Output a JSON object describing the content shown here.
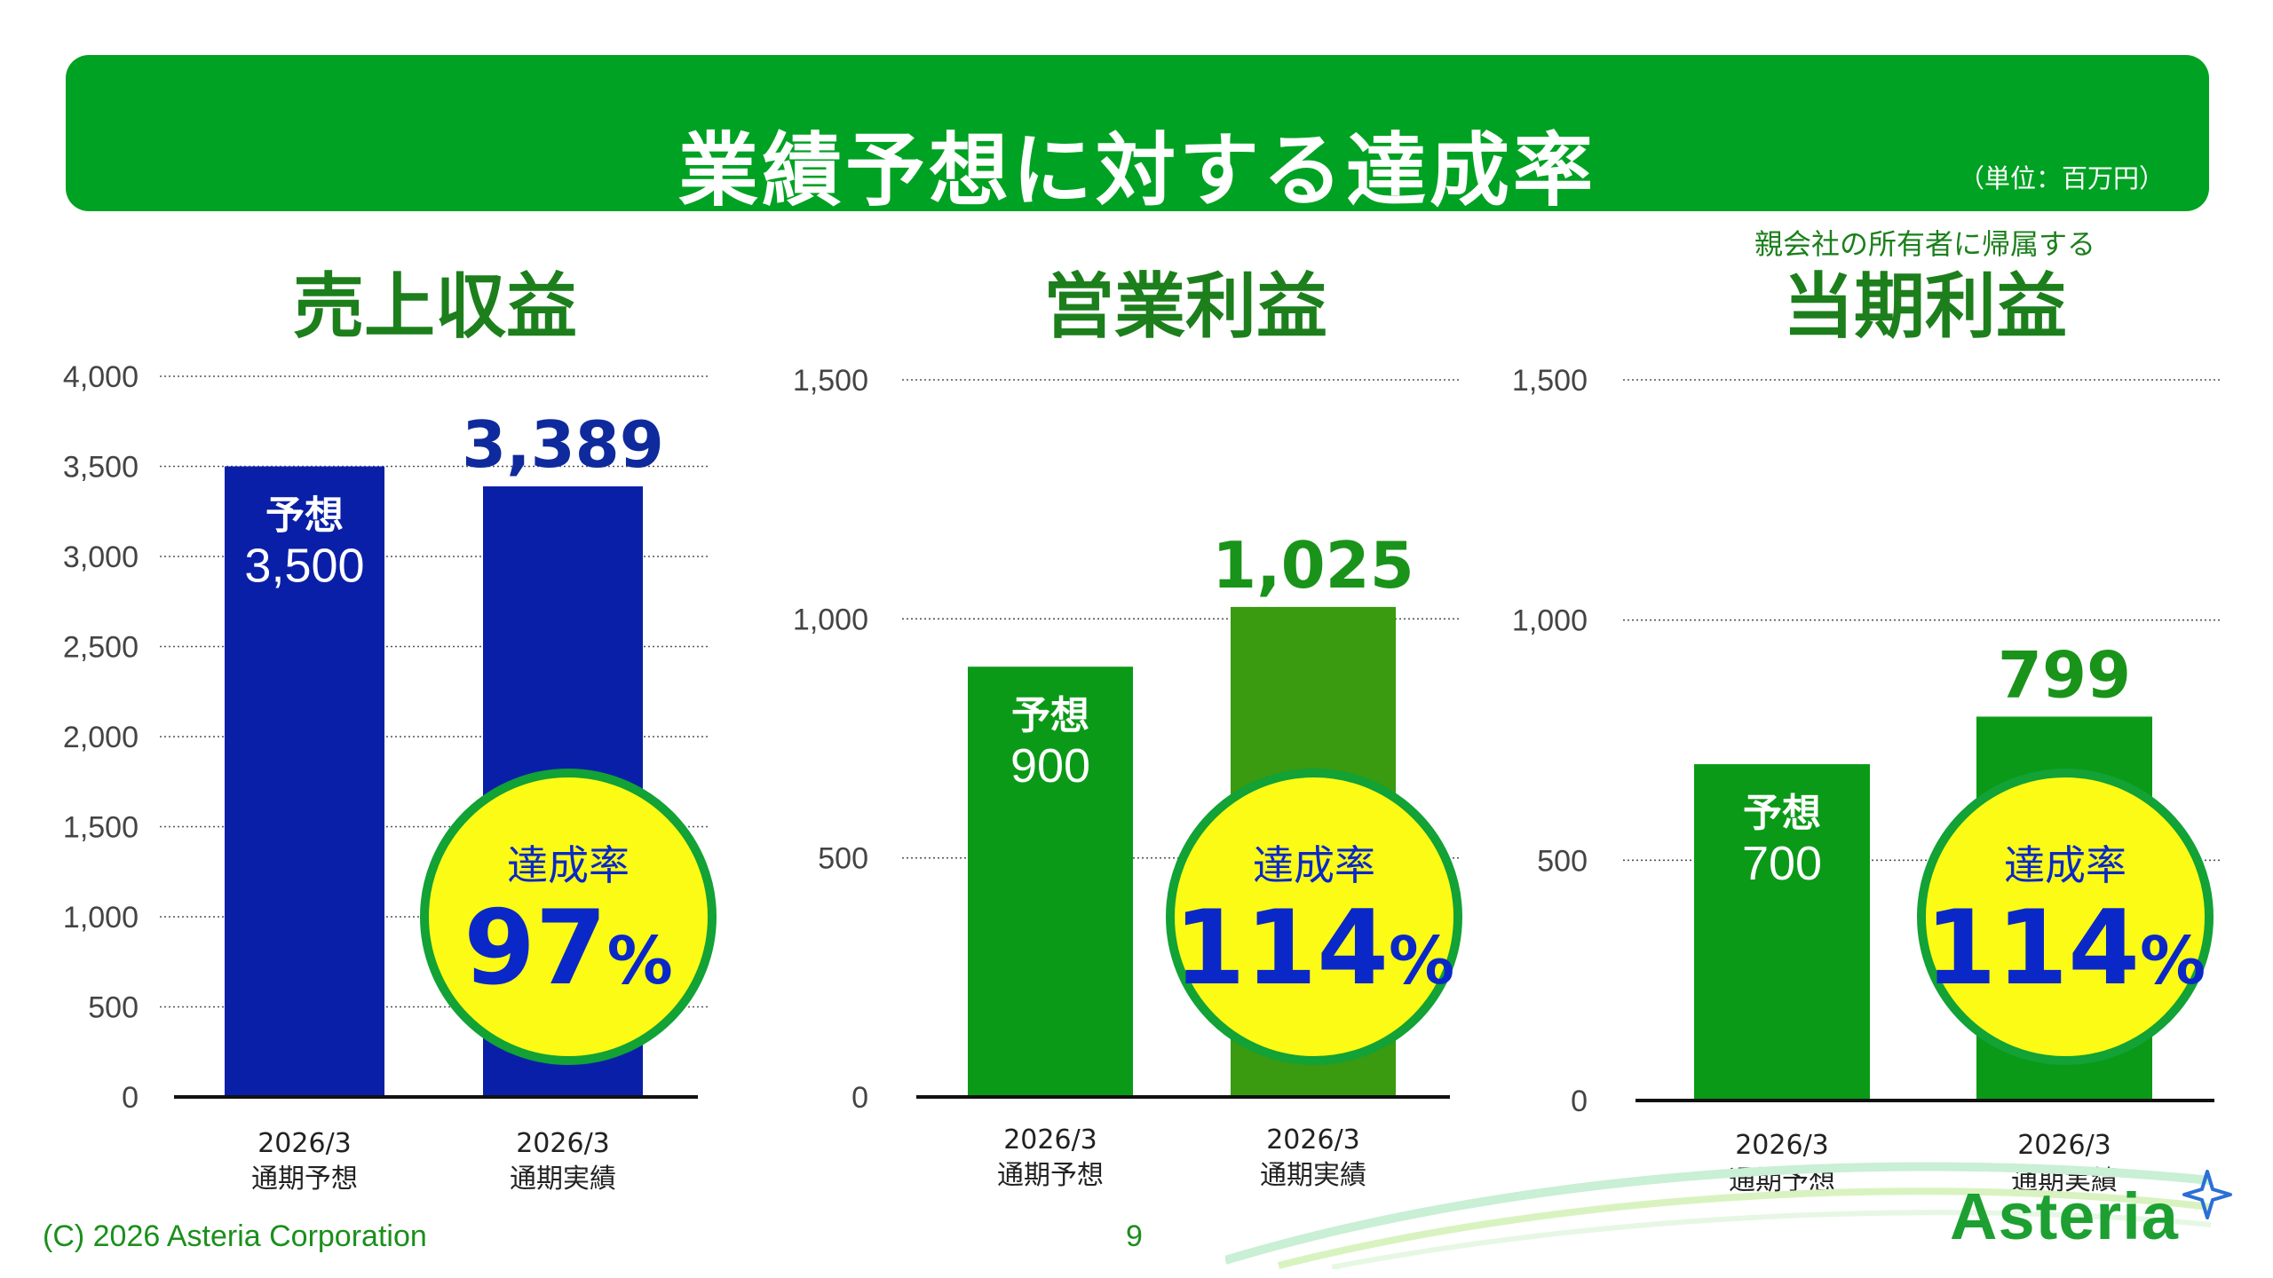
{
  "header": {
    "title": "業績予想に対する達成率",
    "unit": "（単位：百万円）"
  },
  "colors": {
    "banner": "#00a223",
    "title_green": "#1c7f1c",
    "navy_bar": "#0a1fa8",
    "green_bar_forecast": "#0a9a17",
    "green_bar_actual": "#3a9a10",
    "badge_fill": "#fbfb16",
    "badge_ring": "#12a235",
    "badge_text": "#0a28c8"
  },
  "chart_data": [
    {
      "type": "bar",
      "title": "売上収益",
      "note": "",
      "categories": [
        "2026/3\n通期予想",
        "2026/3\n通期実績"
      ],
      "category_lines": [
        [
          "2026/3",
          "通期予想"
        ],
        [
          "2026/3",
          "通期実績"
        ]
      ],
      "values": [
        3500,
        3389
      ],
      "ylim": [
        0,
        4000
      ],
      "yticks": [
        "0",
        "500",
        "1,000",
        "1,500",
        "2,000",
        "2,500",
        "3,000",
        "3,500",
        "4,000"
      ],
      "ytick_values": [
        0,
        500,
        1000,
        1500,
        2000,
        2500,
        3000,
        3500,
        4000
      ],
      "grid": true,
      "forecast_label": "予想",
      "forecast_value_label": "3,500",
      "actual_value_label": "3,389",
      "achievement_label": "達成率",
      "achievement_number": "97",
      "achievement_unit": "%",
      "bar_colors": [
        "#0a1fa8",
        "#0a1fa8"
      ],
      "actual_label_color": "#0f2a9c"
    },
    {
      "type": "bar",
      "title": "営業利益",
      "note": "",
      "categories": [
        "2026/3\n通期予想",
        "2026/3\n通期実績"
      ],
      "category_lines": [
        [
          "2026/3",
          "通期予想"
        ],
        [
          "2026/3",
          "通期実績"
        ]
      ],
      "values": [
        900,
        1025
      ],
      "ylim": [
        0,
        1500
      ],
      "yticks": [
        "0",
        "500",
        "1,000",
        "1,500"
      ],
      "ytick_values": [
        0,
        500,
        1000,
        1500
      ],
      "grid": true,
      "forecast_label": "予想",
      "forecast_value_label": "900",
      "actual_value_label": "1,025",
      "achievement_label": "達成率",
      "achievement_number": "114",
      "achievement_unit": "%",
      "bar_colors": [
        "#0a9a17",
        "#3a9a10"
      ],
      "actual_label_color": "#1a931a"
    },
    {
      "type": "bar",
      "title": "当期利益",
      "note": "親会社の所有者に帰属する",
      "categories": [
        "2026/3\n通期予想",
        "2026/3\n通期実績"
      ],
      "category_lines": [
        [
          "2026/3",
          "通期予想"
        ],
        [
          "2026/3",
          "通期実績"
        ]
      ],
      "values": [
        700,
        799
      ],
      "ylim": [
        0,
        1500
      ],
      "yticks": [
        "0",
        "500",
        "1,000",
        "1,500"
      ],
      "ytick_values": [
        0,
        500,
        1000,
        1500
      ],
      "grid": true,
      "forecast_label": "予想",
      "forecast_value_label": "700",
      "actual_value_label": "799",
      "achievement_label": "達成率",
      "achievement_number": "114",
      "achievement_unit": "%",
      "bar_colors": [
        "#0a9a17",
        "#0a9a17"
      ],
      "actual_label_color": "#1a931a"
    }
  ],
  "footer": {
    "copyright": "(C) 2026 Asteria Corporation",
    "page": "9",
    "logo": "Asteria"
  }
}
